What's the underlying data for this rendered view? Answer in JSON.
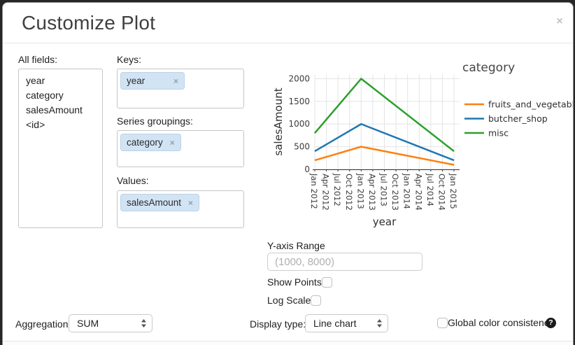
{
  "dialog": {
    "title": "Customize Plot",
    "close_label": "×"
  },
  "fields_panel": {
    "label": "All fields:",
    "items": [
      "year",
      "category",
      "salesAmount",
      "<id>"
    ]
  },
  "keys_section": {
    "label": "Keys:",
    "tags": [
      {
        "label": "year",
        "remove": "×"
      }
    ]
  },
  "series_section": {
    "label": "Series groupings:",
    "tags": [
      {
        "label": "category",
        "remove": "×"
      }
    ]
  },
  "values_section": {
    "label": "Values:",
    "tags": [
      {
        "label": "salesAmount",
        "remove": "×"
      }
    ]
  },
  "y_axis_range": {
    "label": "Y-axis Range",
    "value": "",
    "placeholder": "(1000, 8000)"
  },
  "show_points": {
    "label": "Show Points",
    "checked": false
  },
  "log_scale": {
    "label": "Log Scale",
    "checked": false
  },
  "aggregation": {
    "label": "Aggregation:",
    "value": "SUM"
  },
  "display_type": {
    "label": "Display type:",
    "value": "Line chart"
  },
  "global_color": {
    "label": "Global color consistency",
    "checked": false,
    "help": "?"
  },
  "chart_data": {
    "type": "line",
    "xlabel": "year",
    "ylabel": "salesAmount",
    "legend_title": "category",
    "legend_position": "right",
    "grid": true,
    "x": [
      "Jan 2012",
      "Apr 2012",
      "Jul 2012",
      "Oct 2012",
      "Jan 2013",
      "Apr 2013",
      "Jul 2013",
      "Oct 2013",
      "Jan 2014",
      "Apr 2014",
      "Jul 2014",
      "Oct 2014",
      "Jan 2015"
    ],
    "yticks": [
      0,
      500,
      1000,
      1500,
      2000
    ],
    "ylim": [
      0,
      2100
    ],
    "series": [
      {
        "name": "fruits_and_vegetable",
        "color": "#ff7f0e",
        "points": [
          {
            "x": "Jan 2012",
            "y": 200
          },
          {
            "x": "Jan 2013",
            "y": 500
          },
          {
            "x": "Jan 2015",
            "y": 100
          }
        ]
      },
      {
        "name": "butcher_shop",
        "color": "#1f77b4",
        "points": [
          {
            "x": "Jan 2012",
            "y": 400
          },
          {
            "x": "Jan 2013",
            "y": 1000
          },
          {
            "x": "Jan 2015",
            "y": 200
          }
        ]
      },
      {
        "name": "misc",
        "color": "#2ca02c",
        "points": [
          {
            "x": "Jan 2012",
            "y": 800
          },
          {
            "x": "Jan 2013",
            "y": 2000
          },
          {
            "x": "Jan 2015",
            "y": 400
          }
        ]
      }
    ],
    "colors": {
      "orange": "#ff7f0e",
      "blue": "#1f77b4",
      "green": "#2ca02c"
    }
  }
}
